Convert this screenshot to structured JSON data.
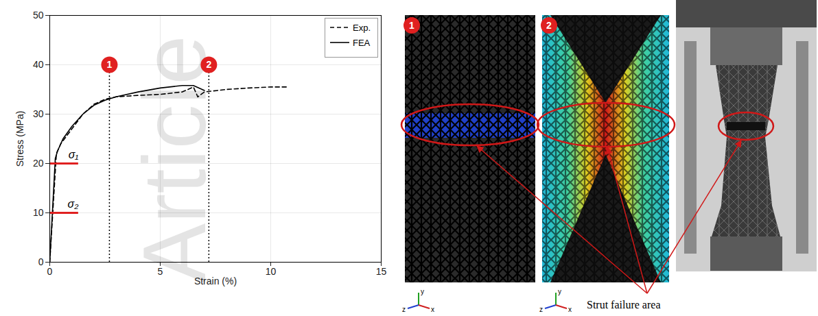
{
  "chart_data": {
    "type": "line",
    "x_label": "Strain (%)",
    "y_label": "Stress (MPa)",
    "xlim": [
      0,
      15
    ],
    "xticks": [
      0,
      5,
      10,
      15
    ],
    "ylim": [
      0,
      50
    ],
    "yticks": [
      0,
      10,
      20,
      30,
      40,
      50
    ],
    "grid": true,
    "legend": "top-right",
    "series": [
      {
        "name": "Exp.",
        "color": "#000000",
        "line_style": "dashed",
        "x": [
          0,
          0.3,
          0.5,
          1,
          1.5,
          2,
          2.5,
          3,
          4,
          5,
          6,
          6.5,
          6.7,
          7,
          8,
          9,
          10,
          10.8
        ],
        "values": [
          0,
          22,
          24,
          27,
          30,
          32,
          33,
          33.5,
          33.8,
          34,
          34.5,
          35.5,
          33.5,
          34.5,
          35,
          35.3,
          35.5,
          35.5
        ]
      },
      {
        "name": "FEA",
        "color": "#000000",
        "line_style": "solid",
        "x": [
          0,
          0.25,
          0.35,
          0.6,
          1,
          1.5,
          2,
          2.5,
          3,
          4,
          5,
          6,
          6.5,
          7
        ],
        "values": [
          0,
          21,
          22.5,
          25,
          27.5,
          30,
          31.8,
          32.8,
          33.5,
          34.5,
          35.3,
          35.8,
          35.8,
          34.8
        ]
      }
    ],
    "markers": [
      {
        "label": "1",
        "x": 2.7,
        "y": 40,
        "color": "#e02020"
      },
      {
        "label": "2",
        "x": 7.2,
        "y": 40,
        "color": "#e02020"
      }
    ],
    "reference_lines": [
      {
        "label": "σ₁",
        "y": 20,
        "x": [
          0,
          1.3
        ],
        "color": "#e02020"
      },
      {
        "label": "σ₂",
        "y": 10,
        "x": [
          0,
          1.3
        ],
        "color": "#e02020"
      }
    ]
  },
  "figure": {
    "panels": [
      {
        "label": "1",
        "axes": [
          "y",
          "z",
          "x"
        ]
      },
      {
        "label": "2",
        "axes": [
          "y",
          "z",
          "x"
        ]
      }
    ],
    "callout": "Strut failure area"
  },
  "watermark": "Article"
}
